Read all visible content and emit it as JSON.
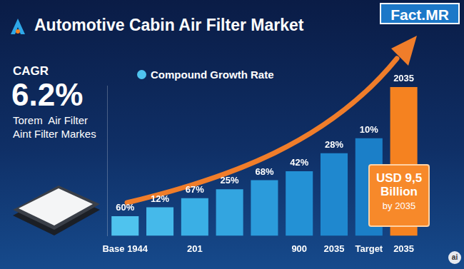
{
  "header": {
    "title": "Automotive Cabin Air Filter Market",
    "logo": "Fact.MR"
  },
  "side_panel": {
    "label": "CAGR",
    "value": "6.2%",
    "lines": [
      "Torem  Air Filter",
      "Aint Filter Markes"
    ]
  },
  "callout": {
    "text": "USD 9,5 Billion",
    "subtext": "by 2035"
  },
  "watermark": "ai",
  "chart_data": {
    "type": "bar",
    "categories": [
      "Base 1944",
      null,
      "201",
      null,
      null,
      "900",
      "2035",
      "Target",
      "2035"
    ],
    "series": [
      {
        "name": "Compound Growth Rate",
        "colors": [
          "#4fc3ee",
          "#45b9ea",
          "#3aafe5",
          "#33a5e0",
          "#2b9bdb",
          "#2391d5",
          "#1f88cf",
          "#1b7fc8",
          "#f58220"
        ],
        "values": [
          13,
          19,
          25,
          31,
          37,
          43,
          55,
          65,
          99
        ]
      }
    ],
    "annotations": [
      "60%",
      "12%",
      "67%",
      "25%",
      "68%",
      "42%",
      "28%",
      "10%",
      "2035"
    ],
    "ylim": [
      0,
      100
    ],
    "yticks": [
      0,
      100
    ],
    "tick_labels": "x",
    "grid": false,
    "legend": "top"
  }
}
